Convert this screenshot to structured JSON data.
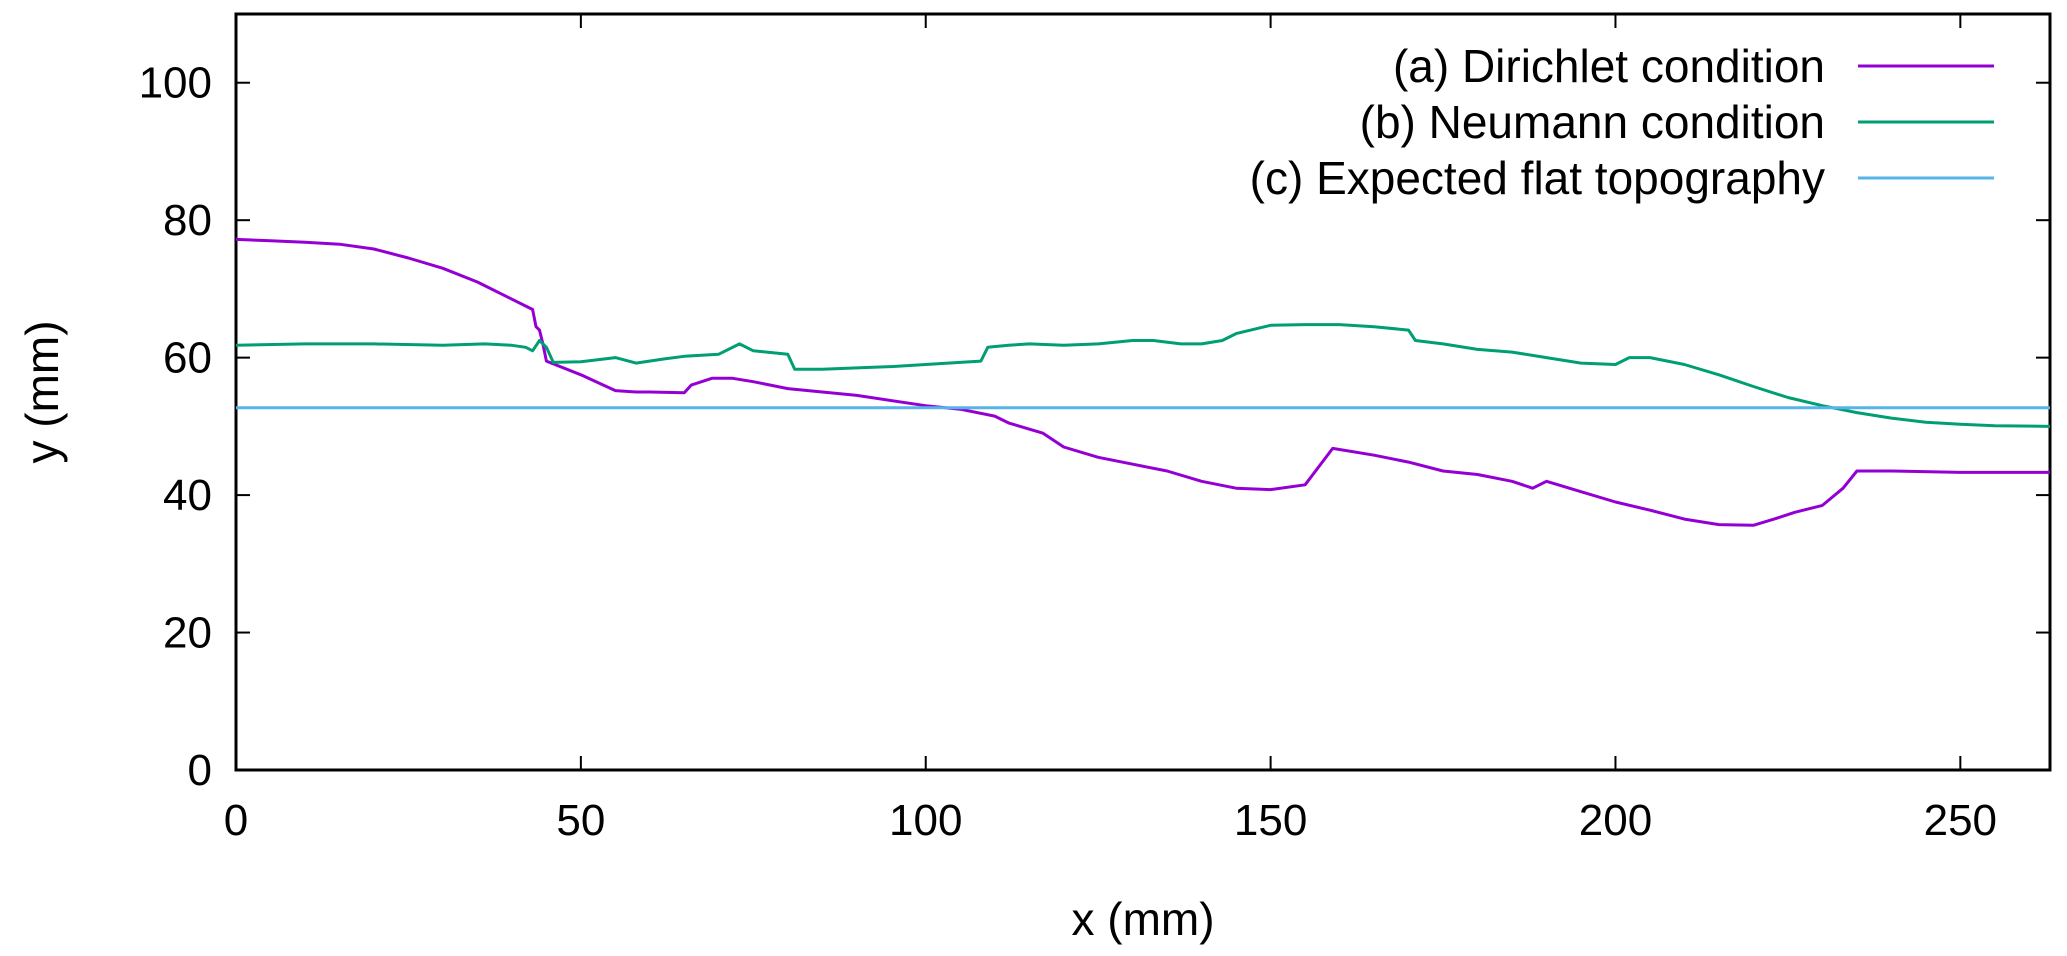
{
  "chart_data": {
    "type": "line",
    "title": "",
    "xlabel": "x (mm)",
    "ylabel": "y (mm)",
    "xlim": [
      0,
      263
    ],
    "ylim": [
      0,
      110
    ],
    "xticks": [
      0,
      50,
      100,
      150,
      200,
      250
    ],
    "yticks": [
      0,
      20,
      40,
      60,
      80,
      100
    ],
    "grid": false,
    "legend_position": "top-right",
    "series": [
      {
        "name": "(a) Dirichlet condition",
        "color": "#9400d3",
        "x": [
          0,
          5,
          10,
          15,
          20,
          25,
          30,
          35,
          40,
          43,
          43.5,
          44,
          44.5,
          45,
          50,
          55,
          58,
          60,
          65,
          66,
          69,
          72,
          75,
          80,
          90,
          100,
          105,
          110,
          112,
          117,
          120,
          125,
          130,
          135,
          140,
          145,
          150,
          155,
          159,
          165,
          170,
          175,
          180,
          185,
          188,
          190,
          195,
          200,
          205,
          210,
          215,
          220,
          223,
          226,
          230,
          233,
          235,
          240,
          250,
          263
        ],
        "y": [
          77.2,
          77.0,
          76.8,
          76.5,
          75.8,
          74.5,
          73.0,
          71.0,
          68.5,
          67.0,
          64.5,
          64.0,
          62.0,
          59.5,
          57.5,
          55.2,
          55.0,
          55.0,
          54.9,
          56.0,
          57.0,
          57.0,
          56.5,
          55.5,
          54.5,
          53.0,
          52.5,
          51.5,
          50.5,
          49.0,
          47.0,
          45.5,
          44.5,
          43.5,
          42.0,
          41.0,
          40.8,
          41.5,
          46.8,
          45.8,
          44.8,
          43.5,
          43.0,
          42.0,
          41.0,
          42.0,
          40.5,
          39.0,
          37.8,
          36.5,
          35.7,
          35.6,
          36.5,
          37.5,
          38.5,
          41.0,
          43.5,
          43.5,
          43.3,
          43.3
        ]
      },
      {
        "name": "(b) Neumann condition",
        "color": "#009e73",
        "x": [
          0,
          10,
          20,
          30,
          36,
          40,
          42,
          43,
          44,
          45,
          46,
          50,
          55,
          58,
          62,
          65,
          70,
          73,
          75,
          80,
          81,
          85,
          90,
          95,
          100,
          105,
          108,
          109,
          112,
          115,
          120,
          125,
          130,
          133,
          137,
          140,
          143,
          145,
          150,
          155,
          160,
          165,
          170,
          171,
          175,
          180,
          185,
          190,
          195,
          200,
          202,
          205,
          210,
          215,
          220,
          225,
          230,
          235,
          240,
          245,
          250,
          255,
          263
        ],
        "y": [
          61.8,
          62.0,
          62.0,
          61.8,
          62.0,
          61.8,
          61.5,
          61.0,
          62.5,
          61.5,
          59.3,
          59.4,
          60.0,
          59.2,
          59.8,
          60.2,
          60.5,
          62.0,
          61.0,
          60.5,
          58.3,
          58.3,
          58.5,
          58.7,
          59.0,
          59.3,
          59.5,
          61.5,
          61.8,
          62.0,
          61.8,
          62.0,
          62.5,
          62.5,
          62.0,
          62.0,
          62.5,
          63.5,
          64.7,
          64.8,
          64.8,
          64.5,
          64.0,
          62.5,
          62.0,
          61.2,
          60.8,
          60.0,
          59.2,
          59.0,
          60.0,
          60.0,
          59.0,
          57.5,
          55.8,
          54.2,
          53.0,
          52.0,
          51.2,
          50.6,
          50.3,
          50.1,
          50.0
        ]
      },
      {
        "name": "(c) Expected flat topography",
        "color": "#56b4e9",
        "x": [
          0,
          263
        ],
        "y": [
          52.7,
          52.7
        ]
      }
    ]
  }
}
